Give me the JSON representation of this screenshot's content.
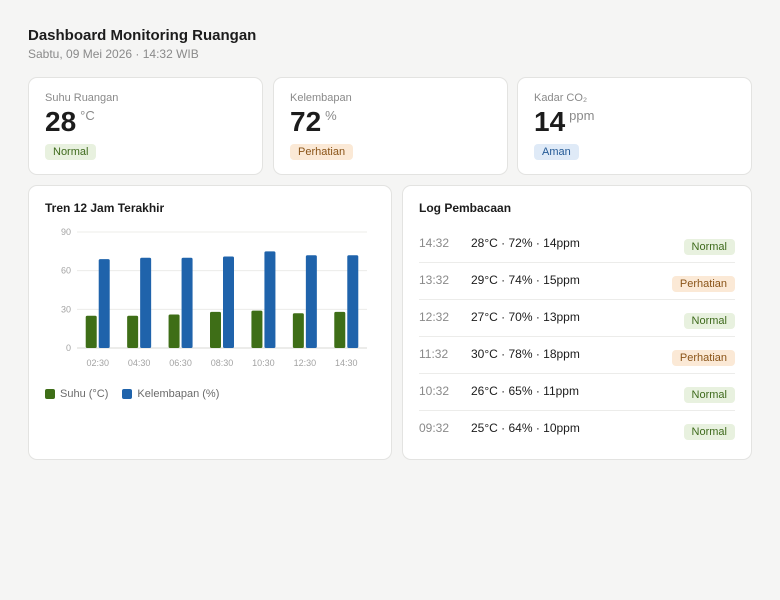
{
  "header": {
    "title": "Dashboard Monitoring Ruangan",
    "subtitle": "Sabtu, 09 Mei 2026 · 14:32 WIB"
  },
  "stats": [
    {
      "label": "Suhu Ruangan",
      "value": "28",
      "unit": "°C",
      "status": "Normal",
      "status_type": "normal"
    },
    {
      "label": "Kelembapan",
      "value": "72",
      "unit": "%",
      "status": "Perhatian",
      "status_type": "warn"
    },
    {
      "label": "Kadar CO₂",
      "value": "14",
      "unit": "ppm",
      "status": "Aman",
      "status_type": "safe"
    }
  ],
  "chart_card": {
    "title": "Tren 12 Jam Terakhir"
  },
  "chart_data": {
    "type": "bar",
    "categories": [
      "02:30",
      "04:30",
      "06:30",
      "08:30",
      "10:30",
      "12:30",
      "14:30"
    ],
    "series": [
      {
        "name": "Suhu (°C)",
        "color": "#3e6e17",
        "values": [
          25,
          25,
          26,
          28,
          29,
          27,
          28
        ]
      },
      {
        "name": "Kelembapan (%)",
        "color": "#1f63ab",
        "values": [
          69,
          70,
          70,
          71,
          75,
          72,
          72
        ]
      }
    ],
    "yticks": [
      0,
      30,
      60,
      90
    ],
    "ylim": [
      0,
      90
    ],
    "grid": true,
    "legend_position": "bottom-left"
  },
  "log": {
    "title": "Log Pembacaan",
    "rows": [
      {
        "time": "14:32",
        "reading": "28°C · 72% · 14ppm",
        "status": "Normal",
        "status_type": "normal"
      },
      {
        "time": "13:32",
        "reading": "29°C · 74% · 15ppm",
        "status": "Perhatian",
        "status_type": "warn"
      },
      {
        "time": "12:32",
        "reading": "27°C · 70% · 13ppm",
        "status": "Normal",
        "status_type": "normal"
      },
      {
        "time": "11:32",
        "reading": "30°C · 78% · 18ppm",
        "status": "Perhatian",
        "status_type": "warn"
      },
      {
        "time": "10:32",
        "reading": "26°C · 65% · 11ppm",
        "status": "Normal",
        "status_type": "normal"
      },
      {
        "time": "09:32",
        "reading": "25°C · 64% · 10ppm",
        "status": "Normal",
        "status_type": "normal"
      }
    ]
  }
}
